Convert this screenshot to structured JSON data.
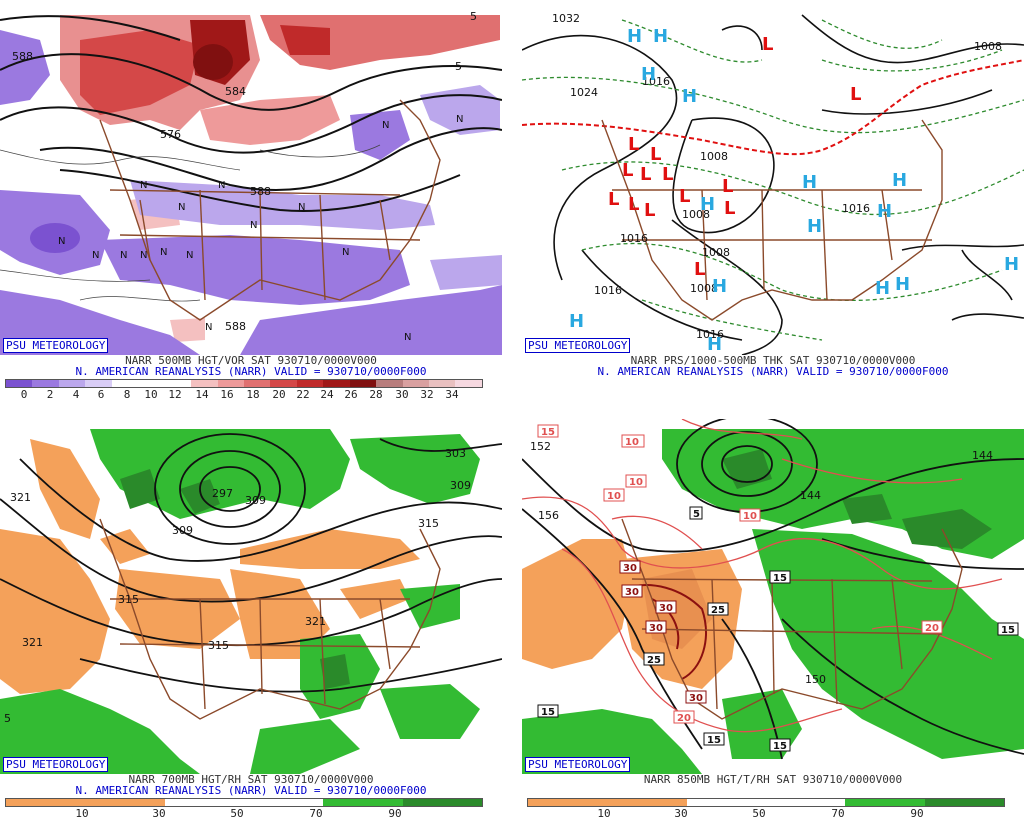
{
  "badge": "PSU METEOROLOGY",
  "panels": {
    "vor": {
      "line1": "NARR 500MB HGT/VOR SAT 930710/0000V000",
      "line2": "N. AMERICAN REANALYSIS (NARR) VALID = 930710/0000F000",
      "ticks": [
        "0",
        "2",
        "4",
        "6",
        "8",
        "10",
        "12",
        "14",
        "16",
        "18",
        "20",
        "22",
        "24",
        "26",
        "28",
        "30",
        "32",
        "34"
      ],
      "colors": [
        "#7b52d0",
        "#9b79e0",
        "#bba7ec",
        "#d9cdf6",
        "#ffffff",
        "#ffffff",
        "#ffffff",
        "#f4c0c0",
        "#ee9a9a",
        "#e07070",
        "#d44848",
        "#c02a2a",
        "#a01818",
        "#801010",
        "#b87d7d",
        "#d9a0a0",
        "#e9c0c0",
        "#f6d8e0"
      ],
      "contour_labels": [
        "588",
        "576",
        "588",
        "588",
        "5",
        "5",
        "584",
        "588",
        "588"
      ],
      "vort_labels": [
        "N",
        "N",
        "N",
        "N",
        "N",
        "N",
        "N",
        "N",
        "N",
        "N",
        "N",
        "N",
        "N",
        "N",
        "N",
        "N"
      ]
    },
    "prs": {
      "line1": "NARR PRS/1000-500MB THK SAT 930710/0000V000",
      "line2": "N. AMERICAN REANALYSIS (NARR) VALID = 930710/0000F000",
      "isobar_labels": [
        "1032",
        "1024",
        "1016",
        "1008",
        "1008",
        "1016",
        "1008",
        "1016",
        "1008",
        "1016",
        "1008",
        "1016"
      ],
      "highs": [
        "H",
        "H",
        "H",
        "H",
        "H",
        "H",
        "H",
        "H",
        "H",
        "H",
        "H",
        "H",
        "H",
        "H",
        "H"
      ],
      "lows": [
        "L",
        "L",
        "L",
        "L",
        "L",
        "L",
        "L",
        "L",
        "L",
        "L",
        "L",
        "L",
        "L",
        "L"
      ]
    },
    "rh700": {
      "line1": "NARR 700MB HGT/RH SAT 930710/0000V000",
      "line2": "N. AMERICAN REANALYSIS (NARR) VALID = 930710/0000F000",
      "ticks": [
        "10",
        "30",
        "50",
        "70",
        "90"
      ],
      "colors": [
        "#f4a15a",
        "#f4a15a",
        "#ffffff",
        "#ffffff",
        "#33bb33",
        "#2a8a2a"
      ],
      "contour_labels": [
        "321",
        "309",
        "297",
        "309",
        "315",
        "315",
        "321",
        "321",
        "303",
        "309",
        "315",
        "5"
      ]
    },
    "t850": {
      "line1": "NARR 850MB HGT/T/RH SAT 930710/0000V000",
      "ticks": [
        "10",
        "30",
        "50",
        "70",
        "90"
      ],
      "colors": [
        "#f4a15a",
        "#f4a15a",
        "#ffffff",
        "#ffffff",
        "#33bb33",
        "#2a8a2a"
      ],
      "contour_labels": [
        "152",
        "156",
        "144",
        "150",
        "144"
      ],
      "temp_labels": [
        "10",
        "5",
        "10",
        "10",
        "10",
        "15",
        "30",
        "30",
        "30",
        "30",
        "25",
        "25",
        "15",
        "30",
        "20",
        "15",
        "15",
        "20",
        "15",
        "15"
      ]
    }
  }
}
